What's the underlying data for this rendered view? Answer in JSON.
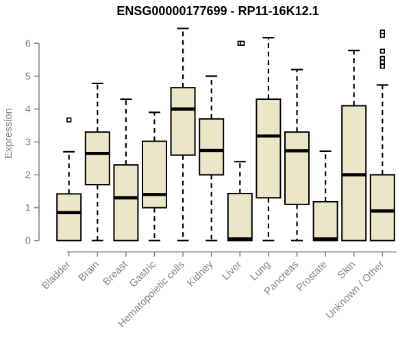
{
  "window": {
    "title": "ENSG00000177699 - RP11-16K12.1"
  },
  "chart_data": {
    "type": "boxplot",
    "title": "ENSG00000177699 - RP11-16K12.1",
    "xlabel": "",
    "ylabel": "Expression",
    "ylim": [
      0,
      6.5
    ],
    "yticks": [
      0,
      1,
      2,
      3,
      4,
      5,
      6
    ],
    "grid": false,
    "legend": "none",
    "colors": {
      "box_fill": "#ece6c8",
      "box_border": "#000000",
      "median": "#000000",
      "whisker": "#000000",
      "axis": "#848484",
      "tick_text": "#848484",
      "title_text": "#000000",
      "background": "#ffffff"
    },
    "categories": [
      "Bladder",
      "Brain",
      "Breast",
      "Gastric",
      "Hematopoietic cells",
      "Kidney",
      "Liver",
      "Lung",
      "Pancreas",
      "Prostate",
      "Skin",
      "Unknown / Other"
    ],
    "boxes": [
      {
        "category": "Bladder",
        "q1": 0,
        "median": 0.85,
        "q3": 1.42,
        "whisker_low": null,
        "whisker_high": 2.7,
        "outliers": [
          3.67
        ]
      },
      {
        "category": "Brain",
        "q1": 1.7,
        "median": 2.65,
        "q3": 3.3,
        "whisker_low": 0,
        "whisker_high": 4.78,
        "outliers": []
      },
      {
        "category": "Breast",
        "q1": 0,
        "median": 1.3,
        "q3": 2.3,
        "whisker_low": null,
        "whisker_high": 4.3,
        "outliers": []
      },
      {
        "category": "Gastric",
        "q1": 1.0,
        "median": 1.4,
        "q3": 3.02,
        "whisker_low": 0,
        "whisker_high": 3.9,
        "outliers": []
      },
      {
        "category": "Hematopoietic cells",
        "q1": 2.6,
        "median": 4.0,
        "q3": 4.65,
        "whisker_low": 0,
        "whisker_high": 6.45,
        "outliers": []
      },
      {
        "category": "Kidney",
        "q1": 2.0,
        "median": 2.74,
        "q3": 3.7,
        "whisker_low": 0,
        "whisker_high": 5.0,
        "outliers": []
      },
      {
        "category": "Liver",
        "q1": 0,
        "median": 0.05,
        "q3": 1.43,
        "whisker_low": null,
        "whisker_high": 2.4,
        "outliers": [
          6.0,
          6.0
        ]
      },
      {
        "category": "Lung",
        "q1": 1.3,
        "median": 3.18,
        "q3": 4.3,
        "whisker_low": 0,
        "whisker_high": 6.17,
        "outliers": []
      },
      {
        "category": "Pancreas",
        "q1": 1.1,
        "median": 2.73,
        "q3": 3.3,
        "whisker_low": 0,
        "whisker_high": 5.2,
        "outliers": []
      },
      {
        "category": "Prostate",
        "q1": 0,
        "median": 0.05,
        "q3": 1.18,
        "whisker_low": null,
        "whisker_high": 2.72,
        "outliers": []
      },
      {
        "category": "Skin",
        "q1": 0,
        "median": 2.0,
        "q3": 4.1,
        "whisker_low": null,
        "whisker_high": 5.78,
        "outliers": []
      },
      {
        "category": "Unknown / Other",
        "q1": 0,
        "median": 0.9,
        "q3": 2.0,
        "whisker_low": null,
        "whisker_high": 4.73,
        "outliers": [
          6.34,
          6.24,
          5.76,
          5.54,
          5.43,
          5.3
        ]
      }
    ]
  }
}
